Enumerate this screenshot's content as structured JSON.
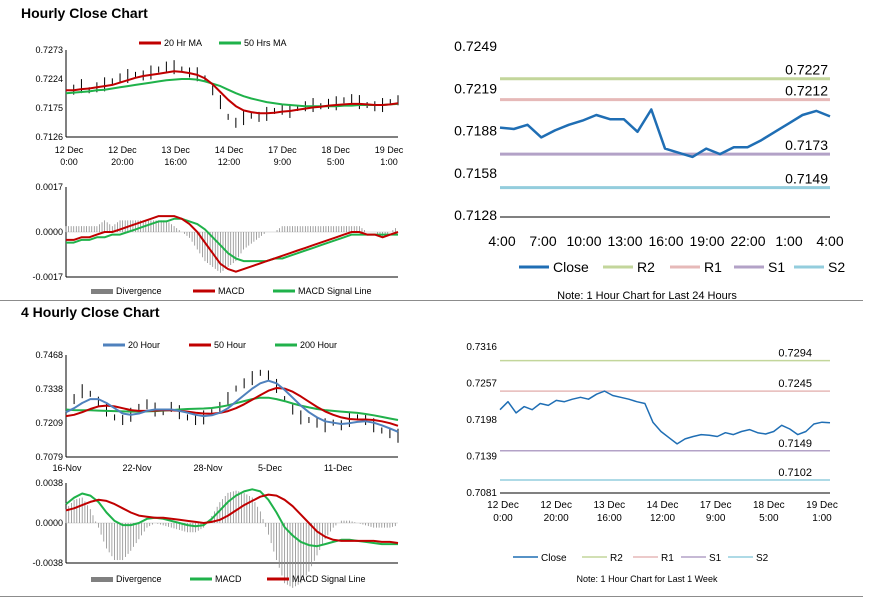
{
  "sections": {
    "hourly_title": "Hourly Close Chart",
    "four_hourly_title": "4 Hourly Close Chart"
  },
  "colors": {
    "ma_short": "#c00000",
    "ma_long": "#1fb24a",
    "ma_200": "#21b14b",
    "blue_20": "#4f81bd",
    "divergence": "#808080",
    "close": "#1f6eb4",
    "r2": "#c3d69b",
    "r1": "#e6b9b8",
    "s1": "#b3a2c7",
    "s2": "#93cddd"
  },
  "chart_data": [
    {
      "id": "hourly-price",
      "type": "line",
      "legend": [
        "20 Hr MA",
        "50 Hrs MA"
      ],
      "yticks": [
        "0.7273",
        "0.7224",
        "0.7175",
        "0.7126"
      ],
      "ylim": [
        0.7126,
        0.7273
      ],
      "xticks": [
        [
          "12 Dec",
          "0:00"
        ],
        [
          "12 Dec",
          "20:00"
        ],
        [
          "13 Dec",
          "16:00"
        ],
        [
          "14 Dec",
          "12:00"
        ],
        [
          "17 Dec",
          "9:00"
        ],
        [
          "18 Dec",
          "5:00"
        ],
        [
          "19 Dec",
          "1:00"
        ]
      ],
      "close": [
        0.721,
        0.7206,
        0.7212,
        0.7205,
        0.721,
        0.7215,
        0.722,
        0.7225,
        0.7229,
        0.7231,
        0.723,
        0.7235,
        0.724,
        0.7245,
        0.7244,
        0.724,
        0.7235,
        0.7232,
        0.7225,
        0.7205,
        0.7185,
        0.716,
        0.715,
        0.7158,
        0.7162,
        0.716,
        0.7165,
        0.717,
        0.7172,
        0.717,
        0.7175,
        0.7178,
        0.718,
        0.7178,
        0.7182,
        0.7183,
        0.7188,
        0.719,
        0.7185,
        0.718,
        0.7178,
        0.718,
        0.7185,
        0.7188
      ],
      "ma20": [
        0.7205,
        0.7205,
        0.7207,
        0.7208,
        0.721,
        0.7212,
        0.7214,
        0.7218,
        0.7222,
        0.7226,
        0.7229,
        0.7231,
        0.7233,
        0.7235,
        0.7237,
        0.7236,
        0.7234,
        0.7231,
        0.7225,
        0.7215,
        0.7202,
        0.7189,
        0.7178,
        0.7171,
        0.7168,
        0.7166,
        0.7166,
        0.7167,
        0.7169,
        0.717,
        0.7172,
        0.7174,
        0.7176,
        0.7177,
        0.7179,
        0.718,
        0.7181,
        0.7182,
        0.7182,
        0.7181,
        0.718,
        0.718,
        0.7181,
        0.7183
      ],
      "ma50": [
        0.72,
        0.7201,
        0.7202,
        0.7203,
        0.7205,
        0.7206,
        0.7208,
        0.721,
        0.7212,
        0.7214,
        0.7216,
        0.7218,
        0.722,
        0.7222,
        0.7223,
        0.7224,
        0.7224,
        0.7223,
        0.722,
        0.7216,
        0.7212,
        0.7206,
        0.72,
        0.7195,
        0.7191,
        0.7188,
        0.7185,
        0.7183,
        0.7181,
        0.718,
        0.7179,
        0.7178,
        0.7178,
        0.7178,
        0.7178,
        0.7178,
        0.7179,
        0.7179,
        0.718,
        0.718,
        0.718,
        0.718,
        0.7181,
        0.7182
      ]
    },
    {
      "id": "hourly-macd",
      "type": "line",
      "legend": [
        "Divergence",
        "MACD",
        "MACD Signal Line"
      ],
      "yticks": [
        "0.0017",
        "0.0000",
        "-0.0017"
      ],
      "ylim": [
        -0.0017,
        0.0017
      ],
      "macd": [
        -0.0003,
        -0.0003,
        -0.0002,
        -0.0002,
        -0.0001,
        0.0,
        0.0,
        0.0001,
        0.0002,
        0.0003,
        0.0004,
        0.0005,
        0.0006,
        0.0006,
        0.0006,
        0.0005,
        0.0003,
        0.0,
        -0.0004,
        -0.0008,
        -0.0012,
        -0.0014,
        -0.0015,
        -0.0014,
        -0.0013,
        -0.0012,
        -0.0011,
        -0.001,
        -0.0009,
        -0.0008,
        -0.0007,
        -0.0006,
        -0.0005,
        -0.0004,
        -0.0003,
        -0.0002,
        -0.0001,
        0.0,
        0.0,
        -0.0001,
        -0.0001,
        -0.0002,
        -0.0001,
        0.0
      ],
      "signal": [
        -0.0004,
        -0.0004,
        -0.0003,
        -0.0003,
        -0.0002,
        -0.0002,
        -0.0001,
        -0.0001,
        0.0,
        0.0001,
        0.0002,
        0.0003,
        0.0004,
        0.0004,
        0.0005,
        0.0005,
        0.0004,
        0.0003,
        0.0001,
        -0.0002,
        -0.0005,
        -0.0008,
        -0.001,
        -0.0011,
        -0.0011,
        -0.0011,
        -0.0011,
        -0.001,
        -0.001,
        -0.0009,
        -0.0008,
        -0.0007,
        -0.0006,
        -0.0005,
        -0.0004,
        -0.0003,
        -0.0002,
        -0.0001,
        -0.0001,
        -0.0001,
        -0.0001,
        -0.0001,
        -0.0001,
        -0.0001
      ]
    },
    {
      "id": "hourly-24h",
      "type": "line",
      "yticks": [
        "0.7249",
        "0.7219",
        "0.7188",
        "0.7158",
        "0.7128"
      ],
      "ylim": [
        0.7128,
        0.7249
      ],
      "xticks": [
        "4:00",
        "7:00",
        "10:00",
        "13:00",
        "16:00",
        "19:00",
        "22:00",
        "1:00",
        "4:00"
      ],
      "close": [
        0.7192,
        0.7191,
        0.7194,
        0.7185,
        0.719,
        0.7194,
        0.7197,
        0.7201,
        0.7198,
        0.7198,
        0.7189,
        0.7205,
        0.7177,
        0.7174,
        0.7171,
        0.7177,
        0.7173,
        0.7178,
        0.7178,
        0.7183,
        0.7189,
        0.7195,
        0.7201,
        0.7204,
        0.72
      ],
      "levels": [
        {
          "name": "R2",
          "value": 0.7227,
          "label": "0.7227"
        },
        {
          "name": "R1",
          "value": 0.7212,
          "label": "0.7212"
        },
        {
          "name": "S1",
          "value": 0.7173,
          "label": "0.7173"
        },
        {
          "name": "S2",
          "value": 0.7149,
          "label": "0.7149"
        }
      ],
      "legend": [
        "Close",
        "R2",
        "R1",
        "S1",
        "S2"
      ],
      "note": "Note: 1 Hour Chart for Last 24 Hours"
    },
    {
      "id": "four-hourly-price",
      "type": "line",
      "legend": [
        "20 Hour",
        "50 Hour",
        "200 Hour"
      ],
      "yticks": [
        "0.7468",
        "0.7338",
        "0.7209",
        "0.7079"
      ],
      "ylim": [
        0.7079,
        0.7468
      ],
      "xticks": [
        "16-Nov",
        "22-Nov",
        "28-Nov",
        "5-Dec",
        "11-Dec"
      ],
      "close": [
        0.727,
        0.73,
        0.733,
        0.732,
        0.729,
        0.726,
        0.723,
        0.722,
        0.724,
        0.727,
        0.728,
        0.726,
        0.725,
        0.727,
        0.725,
        0.723,
        0.722,
        0.723,
        0.725,
        0.727,
        0.73,
        0.734,
        0.736,
        0.738,
        0.74,
        0.739,
        0.735,
        0.73,
        0.726,
        0.723,
        0.722,
        0.721,
        0.72,
        0.721,
        0.72,
        0.722,
        0.723,
        0.722,
        0.72,
        0.718,
        0.717,
        0.716
      ],
      "ma20": [
        0.725,
        0.7265,
        0.7285,
        0.73,
        0.73,
        0.7285,
        0.7265,
        0.7245,
        0.724,
        0.7245,
        0.7255,
        0.726,
        0.726,
        0.726,
        0.7255,
        0.7248,
        0.724,
        0.7235,
        0.7238,
        0.7248,
        0.7265,
        0.729,
        0.7315,
        0.734,
        0.736,
        0.737,
        0.736,
        0.7335,
        0.7305,
        0.7275,
        0.725,
        0.723,
        0.7215,
        0.721,
        0.7205,
        0.7208,
        0.7213,
        0.7215,
        0.721,
        0.72,
        0.7188,
        0.7175
      ],
      "ma50": [
        0.7235,
        0.724,
        0.725,
        0.7262,
        0.7272,
        0.7275,
        0.7272,
        0.7265,
        0.7258,
        0.7255,
        0.7255,
        0.7256,
        0.7257,
        0.7257,
        0.7255,
        0.7252,
        0.7248,
        0.7245,
        0.7244,
        0.7247,
        0.7254,
        0.7265,
        0.728,
        0.7297,
        0.7315,
        0.7332,
        0.7342,
        0.734,
        0.7328,
        0.731,
        0.729,
        0.727,
        0.7253,
        0.724,
        0.723,
        0.7224,
        0.7222,
        0.7222,
        0.722,
        0.7215,
        0.7208,
        0.7198
      ],
      "ma200": [
        0.726,
        0.7258,
        0.7257,
        0.7257,
        0.7256,
        0.7255,
        0.7254,
        0.7253,
        0.7252,
        0.7252,
        0.7253,
        0.7254,
        0.7256,
        0.7258,
        0.726,
        0.7262,
        0.7263,
        0.7264,
        0.7266,
        0.727,
        0.7276,
        0.7284,
        0.7292,
        0.73,
        0.7305,
        0.7305,
        0.73,
        0.7292,
        0.7283,
        0.7275,
        0.7268,
        0.7262,
        0.7258,
        0.7255,
        0.7252,
        0.725,
        0.7247,
        0.7243,
        0.7238,
        0.7232,
        0.7226,
        0.722
      ]
    },
    {
      "id": "four-hourly-macd",
      "type": "line",
      "legend": [
        "Divergence",
        "MACD",
        "MACD Signal Line"
      ],
      "yticks": [
        "0.0038",
        "0.0000",
        "-0.0038"
      ],
      "ylim": [
        -0.0038,
        0.0038
      ],
      "macd": [
        0.0018,
        0.0024,
        0.0028,
        0.0026,
        0.002,
        0.001,
        0.0002,
        -0.0002,
        -0.0002,
        0.0,
        0.0004,
        0.0005,
        0.0004,
        0.0002,
        0.0,
        -0.0002,
        -0.0003,
        -0.0002,
        0.0004,
        0.0012,
        0.002,
        0.0026,
        0.003,
        0.0032,
        0.003,
        0.0022,
        0.001,
        -0.0004,
        -0.0012,
        -0.0018,
        -0.0021,
        -0.0022,
        -0.002,
        -0.0018,
        -0.0016,
        -0.0016,
        -0.0017,
        -0.0018,
        -0.0019,
        -0.002,
        -0.002,
        -0.002
      ],
      "signal": [
        0.0012,
        0.0014,
        0.0017,
        0.002,
        0.0022,
        0.0021,
        0.0018,
        0.0014,
        0.001,
        0.0007,
        0.0006,
        0.0005,
        0.0005,
        0.0004,
        0.0003,
        0.0002,
        0.0001,
        0.0,
        0.0001,
        0.0003,
        0.0007,
        0.0012,
        0.0017,
        0.0021,
        0.0025,
        0.0027,
        0.0026,
        0.0022,
        0.0016,
        0.0008,
        0.0,
        -0.0008,
        -0.0013,
        -0.0016,
        -0.0017,
        -0.0017,
        -0.0017,
        -0.0017,
        -0.0017,
        -0.0018,
        -0.0018,
        -0.0019
      ]
    },
    {
      "id": "four-hourly-week",
      "type": "line",
      "yticks": [
        "0.7316",
        "0.7257",
        "0.7198",
        "0.7139",
        "0.7081"
      ],
      "ylim": [
        0.7081,
        0.7316
      ],
      "xticks": [
        [
          "12 Dec",
          "0:00"
        ],
        [
          "12 Dec",
          "20:00"
        ],
        [
          "13 Dec",
          "16:00"
        ],
        [
          "14 Dec",
          "12:00"
        ],
        [
          "17 Dec",
          "9:00"
        ],
        [
          "18 Dec",
          "5:00"
        ],
        [
          "19 Dec",
          "1:00"
        ]
      ],
      "close": [
        0.7215,
        0.7228,
        0.721,
        0.722,
        0.7215,
        0.7225,
        0.7222,
        0.723,
        0.7228,
        0.7232,
        0.7235,
        0.7232,
        0.724,
        0.7245,
        0.7238,
        0.7235,
        0.7232,
        0.7228,
        0.7225,
        0.7195,
        0.718,
        0.717,
        0.716,
        0.7168,
        0.7172,
        0.7175,
        0.7174,
        0.7172,
        0.7178,
        0.7175,
        0.718,
        0.7183,
        0.7178,
        0.7176,
        0.718,
        0.719,
        0.7184,
        0.7175,
        0.718,
        0.7192,
        0.7195,
        0.7194
      ],
      "levels": [
        {
          "name": "R2",
          "value": 0.7294,
          "label": "0.7294"
        },
        {
          "name": "R1",
          "value": 0.7245,
          "label": "0.7245"
        },
        {
          "name": "S1",
          "value": 0.7149,
          "label": "0.7149"
        },
        {
          "name": "S2",
          "value": 0.7102,
          "label": "0.7102"
        }
      ],
      "legend": [
        "Close",
        "R2",
        "R1",
        "S1",
        "S2"
      ],
      "note": "Note: 1 Hour Chart for Last 1 Week"
    }
  ]
}
